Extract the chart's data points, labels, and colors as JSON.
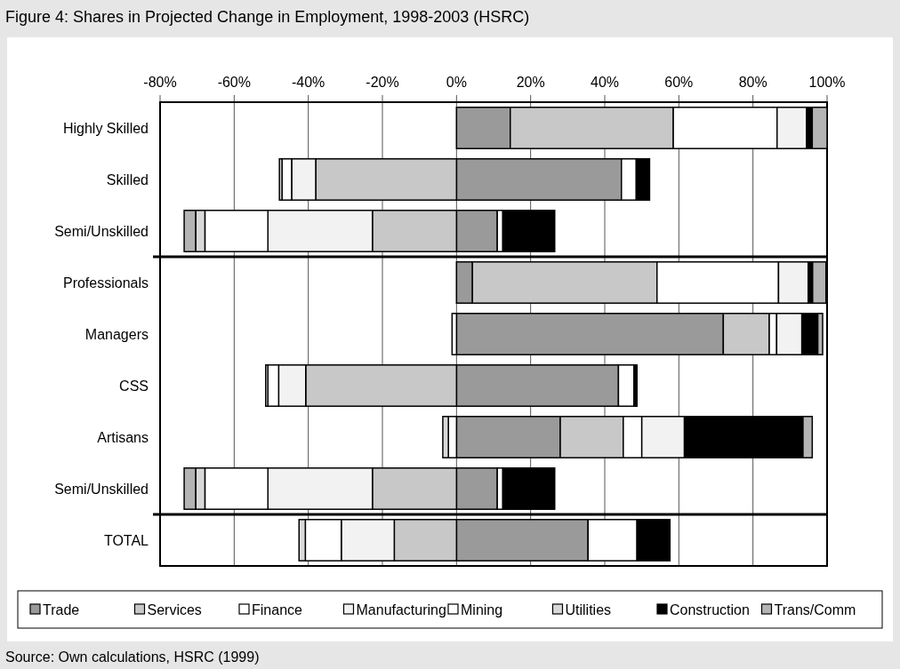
{
  "chart_data": {
    "type": "bar",
    "orientation": "horizontal",
    "stacked": true,
    "title": "Figure 4: Shares in Projected Change in Employment, 1998-2003 (HSRC)",
    "annotations": [
      "Source: Own calculations, HSRC (1999)"
    ],
    "categories": [
      "Highly Skilled",
      "Skilled",
      "Semi/Unskilled",
      "Professionals",
      "Managers",
      "CSS",
      "Artisans",
      "Semi/Unskilled",
      "TOTAL"
    ],
    "series": [
      {
        "name": "Trade",
        "color": "#9a9a9a",
        "values": [
          14.5,
          44.5,
          11,
          4.3,
          72,
          43.7,
          28,
          11,
          35.5
        ]
      },
      {
        "name": "Services",
        "color": "#c8c8c8",
        "values": [
          44,
          -38,
          -22.7,
          49.8,
          12.4,
          -40.7,
          17,
          -22.7,
          -16.8
        ]
      },
      {
        "name": "Finance",
        "color": "#ffffff",
        "values": [
          28,
          4,
          1.5,
          32.8,
          2,
          4.2,
          5,
          1.5,
          13.2
        ]
      },
      {
        "name": "Manufacturing",
        "color": "#f2f2f2",
        "values": [
          8,
          -6.5,
          -28.2,
          8,
          6.8,
          -7.3,
          11.5,
          -28.2,
          -14.3
        ]
      },
      {
        "name": "Mining",
        "color": "#ffffff",
        "values": [
          null,
          -2.6,
          -17,
          null,
          -1.2,
          -2.9,
          -2.2,
          -17,
          -9.7
        ]
      },
      {
        "name": "Utilities",
        "color": "#d9d9d9",
        "values": [
          null,
          -0.7,
          -2.5,
          null,
          null,
          -0.6,
          -1.5,
          -2.5,
          -1.7
        ]
      },
      {
        "name": "Construction",
        "color": "#000000",
        "values": [
          1.5,
          3.6,
          14,
          1.2,
          4.3,
          0.8,
          32,
          14,
          8.9
        ]
      },
      {
        "name": "Trans/Comm",
        "color": "#b4b4b4",
        "values": [
          4,
          null,
          -3.1,
          3.6,
          1.3,
          null,
          2.5,
          -3.1,
          null
        ]
      }
    ],
    "xlim": [
      -80,
      100
    ],
    "xticks": [
      {
        "value": -80,
        "label": "-80%"
      },
      {
        "value": -60,
        "label": "-60%"
      },
      {
        "value": -40,
        "label": "-40%"
      },
      {
        "value": -20,
        "label": "-20%"
      },
      {
        "value": 0,
        "label": "0%"
      },
      {
        "value": 20,
        "label": "20%"
      },
      {
        "value": 40,
        "label": "40%"
      },
      {
        "value": 60,
        "label": "60%"
      },
      {
        "value": 80,
        "label": "80%"
      },
      {
        "value": 100,
        "label": "100%"
      }
    ],
    "grid": "x",
    "legend": "bottom"
  }
}
